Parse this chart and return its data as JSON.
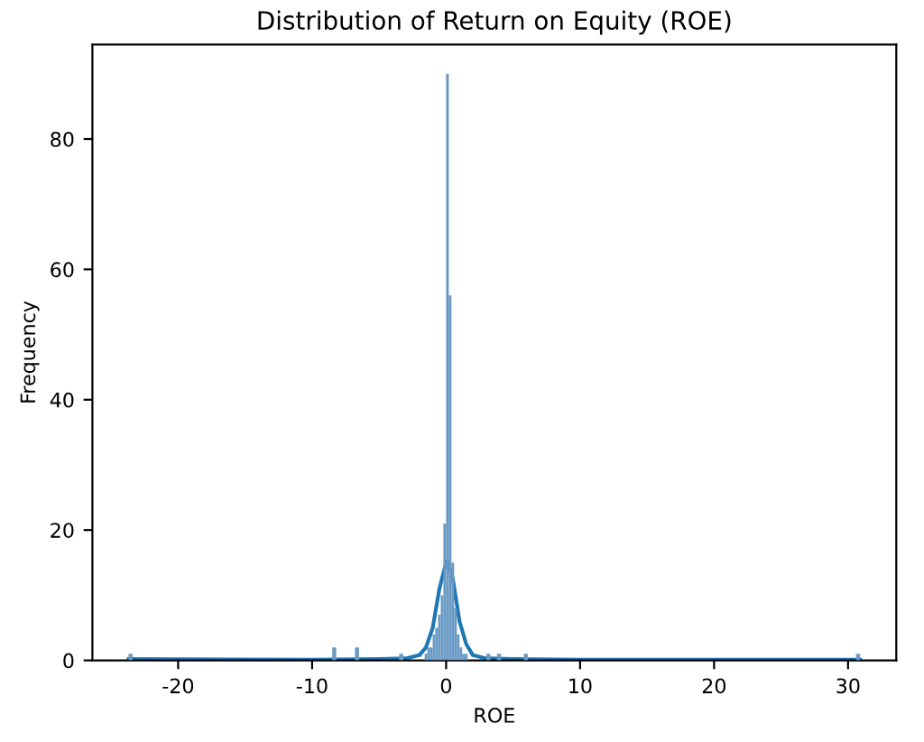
{
  "chart_data": {
    "type": "histogram",
    "title": "Distribution of Return on Equity (ROE)",
    "xlabel": "ROE",
    "ylabel": "Frequency",
    "bins": [
      -23.7,
      -23.4,
      -8.5,
      -8.2,
      -6.8,
      -6.5,
      -3.5,
      -3.2,
      -1.6,
      -1.4,
      -1.2,
      -1.0,
      -0.8,
      -0.6,
      -0.4,
      -0.2,
      0.0,
      0.2,
      0.4,
      0.6,
      0.8,
      1.0,
      1.2,
      1.4,
      1.6,
      3.0,
      3.3,
      3.8,
      4.1,
      5.8,
      6.1,
      30.6,
      30.9
    ],
    "values": [
      1,
      0,
      2,
      0,
      2,
      0,
      1,
      0,
      1,
      2,
      2,
      4,
      5,
      7,
      10,
      21,
      90,
      56,
      15,
      8,
      4,
      2,
      1,
      1,
      0,
      1,
      0,
      1,
      0,
      1,
      0,
      1
    ],
    "color": "#6a9ac4",
    "series": [
      {
        "type": "line",
        "color": "#1f77b4",
        "x": [
          -23.7,
          -10,
          -5,
          -3,
          -2,
          -1.5,
          -1,
          -0.5,
          0,
          0.1,
          0.5,
          1,
          1.5,
          2,
          3,
          5,
          10,
          30.9
        ],
        "values": [
          0.2,
          0.1,
          0.2,
          0.3,
          0.8,
          2,
          5,
          11,
          15,
          15.3,
          12.5,
          6,
          2.5,
          0.8,
          0.3,
          0.2,
          0.1,
          0.1
        ]
      }
    ],
    "xlim": [
      -26.4,
      33.6
    ],
    "ylim": [
      0,
      94.5
    ],
    "xticks": [
      -20,
      -10,
      0,
      10,
      20,
      30
    ],
    "yticks": [
      0,
      20,
      40,
      60,
      80
    ],
    "grid": false
  }
}
